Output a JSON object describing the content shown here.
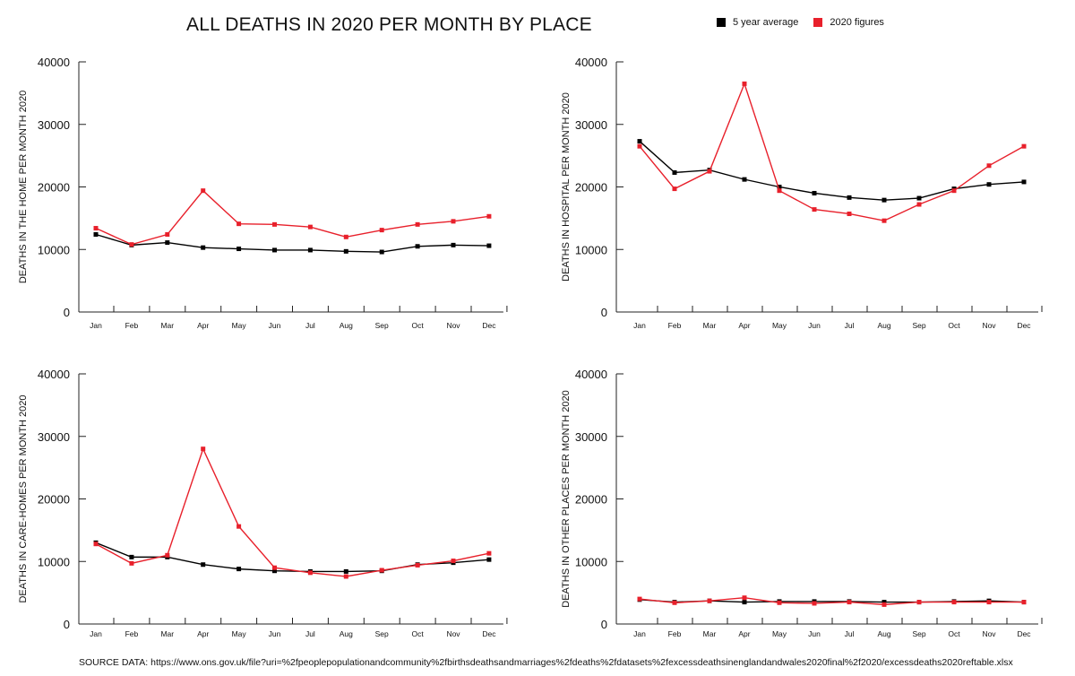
{
  "title": "ALL DEATHS IN 2020 PER MONTH BY PLACE",
  "legend": [
    {
      "label": "5 year average",
      "color": "#000000"
    },
    {
      "label": "2020 figures",
      "color": "#e8202b"
    }
  ],
  "source": "SOURCE DATA: https://www.ons.gov.uk/file?uri=%2fpeoplepopulationandcommunity%2fbirthsdeathsandmarriages%2fdeaths%2fdatasets%2fexcessdeathsinenglandandwales2020final%2f2020/excessdeaths2020reftable.xlsx",
  "colors": {
    "avg": "#000000",
    "y2020": "#e8202b"
  },
  "chart_data": [
    {
      "type": "line",
      "ylabel": "DEATHS IN THE HOME PER MONTH 2020",
      "categories": [
        "Jan",
        "Feb",
        "Mar",
        "Apr",
        "May",
        "Jun",
        "Jul",
        "Aug",
        "Sep",
        "Oct",
        "Nov",
        "Dec"
      ],
      "ylim": [
        0,
        40000
      ],
      "yticks": [
        "0",
        "10000",
        "20000",
        "30000",
        "40000"
      ],
      "series": [
        {
          "name": "5 year average",
          "values": [
            12400,
            10700,
            11100,
            10300,
            10100,
            9900,
            9900,
            9700,
            9600,
            10500,
            10700,
            10600
          ]
        },
        {
          "name": "2020 figures",
          "values": [
            13400,
            10800,
            12400,
            19400,
            14100,
            14000,
            13600,
            12000,
            13100,
            14000,
            14500,
            15300
          ]
        }
      ]
    },
    {
      "type": "line",
      "ylabel": "DEATHS IN HOSPITAL PER MONTH 2020",
      "categories": [
        "Jan",
        "Feb",
        "Mar",
        "Apr",
        "May",
        "Jun",
        "Jul",
        "Aug",
        "Sep",
        "Oct",
        "Nov",
        "Dec"
      ],
      "ylim": [
        0,
        40000
      ],
      "yticks": [
        "0",
        "10000",
        "20000",
        "30000",
        "40000"
      ],
      "series": [
        {
          "name": "5 year average",
          "values": [
            27300,
            22300,
            22700,
            21200,
            20000,
            19000,
            18300,
            17900,
            18200,
            19700,
            20400,
            20800
          ]
        },
        {
          "name": "2020 figures",
          "values": [
            26500,
            19700,
            22500,
            36500,
            19400,
            16400,
            15700,
            14600,
            17200,
            19400,
            23400,
            26500
          ]
        }
      ]
    },
    {
      "type": "line",
      "ylabel": "DEATHS IN CARE-HOMES PER MONTH 2020",
      "categories": [
        "Jan",
        "Feb",
        "Mar",
        "Apr",
        "May",
        "Jun",
        "Jul",
        "Aug",
        "Sep",
        "Oct",
        "Nov",
        "Dec"
      ],
      "ylim": [
        0,
        40000
      ],
      "yticks": [
        "0",
        "10000",
        "20000",
        "30000",
        "40000"
      ],
      "series": [
        {
          "name": "5 year average",
          "values": [
            13000,
            10700,
            10700,
            9500,
            8800,
            8500,
            8400,
            8400,
            8500,
            9500,
            9800,
            10300
          ]
        },
        {
          "name": "2020 figures",
          "values": [
            12800,
            9700,
            11000,
            28000,
            15600,
            9000,
            8200,
            7600,
            8600,
            9400,
            10100,
            11300
          ]
        }
      ]
    },
    {
      "type": "line",
      "ylabel": "DEATHS IN OTHER PLACES PER MONTH 2020",
      "categories": [
        "Jan",
        "Feb",
        "Mar",
        "Apr",
        "May",
        "Jun",
        "Jul",
        "Aug",
        "Sep",
        "Oct",
        "Nov",
        "Dec"
      ],
      "ylim": [
        0,
        40000
      ],
      "yticks": [
        "0",
        "10000",
        "20000",
        "30000",
        "40000"
      ],
      "series": [
        {
          "name": "5 year average",
          "values": [
            3900,
            3500,
            3700,
            3500,
            3600,
            3600,
            3600,
            3500,
            3500,
            3600,
            3700,
            3500
          ]
        },
        {
          "name": "2020 figures",
          "values": [
            4000,
            3400,
            3700,
            4200,
            3400,
            3300,
            3500,
            3100,
            3500,
            3500,
            3500,
            3500
          ]
        }
      ]
    }
  ]
}
